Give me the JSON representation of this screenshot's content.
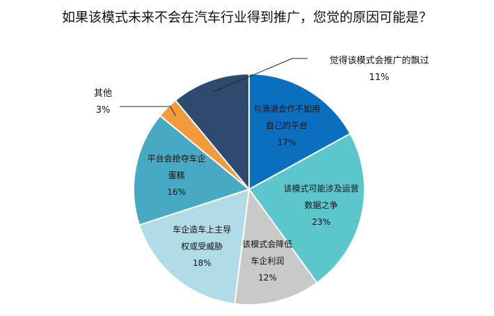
{
  "chart_data": {
    "type": "pie",
    "title": "如果该模式未来不会在汽车行业得到推广，您觉的原因可能是？",
    "start_angle_deg": 0,
    "direction": "clockwise",
    "slices": [
      {
        "label_lines": [
          "与滴滴合作不如用",
          "自己的平台"
        ],
        "value": 17,
        "value_label": "17%",
        "color": "#0b6fc0",
        "label_position": "inside"
      },
      {
        "label_lines": [
          "该模式可能涉及运营",
          "数据之争"
        ],
        "value": 23,
        "value_label": "23%",
        "color": "#5bc7cc",
        "label_position": "inside"
      },
      {
        "label_lines": [
          "该模式会降低",
          "车企利润"
        ],
        "value": 12,
        "value_label": "12%",
        "color": "#c9c9c9",
        "label_position": "inside"
      },
      {
        "label_lines": [
          "车企造车上主导",
          "权或受威胁"
        ],
        "value": 18,
        "value_label": "18%",
        "color": "#b2dbe8",
        "label_position": "inside"
      },
      {
        "label_lines": [
          "平台会抢夺车企",
          "蛋糕"
        ],
        "value": 16,
        "value_label": "16%",
        "color": "#48a9c5",
        "label_position": "inside"
      },
      {
        "label_lines": [
          "其他"
        ],
        "value": 3,
        "value_label": "3%",
        "color": "#f39a3c",
        "label_position": "outside-left"
      },
      {
        "label_lines": [
          "觉得该模式会推广的飘过"
        ],
        "value": 11,
        "value_label": "11%",
        "color": "#2e4a6e",
        "label_position": "outside-right"
      }
    ]
  }
}
